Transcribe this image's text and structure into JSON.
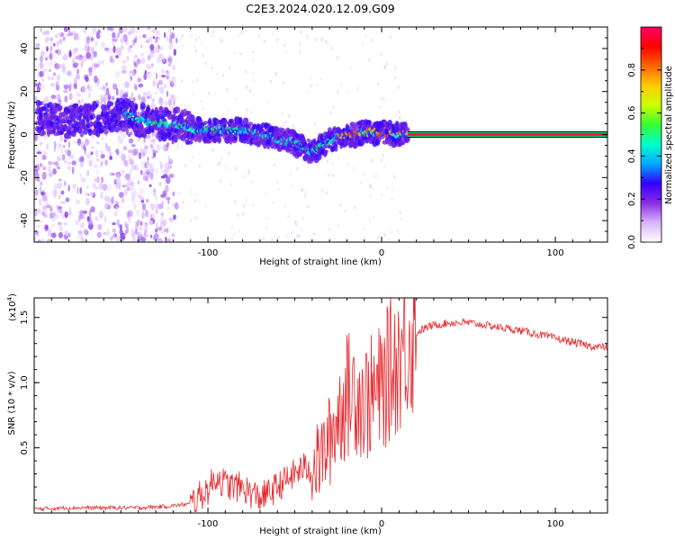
{
  "page_title": "C2E3.2024.020.12.09.G09",
  "chart_data": [
    {
      "type": "heatmap",
      "xlabel": "Height of straight line (km)",
      "ylabel": "Frequency (Hz)",
      "xlim": [
        -200,
        130
      ],
      "ylim": [
        -50,
        50
      ],
      "xticks": [
        -100,
        0,
        100
      ],
      "yticks": [
        -40,
        -20,
        0,
        20,
        40
      ],
      "colorbar": {
        "label": "Normalized spectral amplitude",
        "range": [
          0,
          1
        ],
        "ticks": [
          "0.0",
          "0.2",
          "0.4",
          "0.6",
          "0.8"
        ],
        "colormap": [
          "#ffffff",
          "#d9b3ff",
          "#8a2be2",
          "#3300ff",
          "#00aaff",
          "#00ffcc",
          "#33ff33",
          "#ccff00",
          "#ffcc00",
          "#ff6600",
          "#ff0000",
          "#ff0066"
        ]
      },
      "ridge": {
        "x": [
          -198,
          -190,
          -180,
          -170,
          -160,
          -150,
          -140,
          -130,
          -120,
          -110,
          -100,
          -90,
          -80,
          -70,
          -60,
          -50,
          -40,
          -35,
          -30,
          -25,
          -20,
          -15,
          -10,
          0,
          10,
          15,
          130
        ],
        "y": [
          8,
          7,
          6,
          8,
          7,
          10,
          7,
          5,
          5,
          3,
          2,
          2,
          2,
          0,
          -2,
          -4,
          -8,
          -5,
          -3,
          -1,
          0,
          0,
          1,
          1,
          0,
          0,
          0
        ]
      },
      "stable_line": {
        "x_start": 15,
        "x_end": 130,
        "frequency": 0
      }
    },
    {
      "type": "line",
      "xlabel": "Height of straight line (km)",
      "ylabel": "SNR (10 * v/v)",
      "scale_label": "(x10",
      "scale_exponent": "4",
      "scale_close": ")",
      "xlim": [
        -200,
        130
      ],
      "ylim": [
        0,
        1.65
      ],
      "xticks": [
        -100,
        0,
        100
      ],
      "yticks": [
        0.5,
        1.0,
        1.5
      ],
      "ytick_labels": [
        "0.5",
        "1.0",
        "1.5"
      ],
      "line_color": "#e8282d",
      "series": {
        "name": "SNR",
        "x": [
          -200,
          -180,
          -160,
          -140,
          -125,
          -110,
          -100,
          -95,
          -90,
          -85,
          -80,
          -75,
          -70,
          -65,
          -60,
          -55,
          -50,
          -45,
          -40,
          -35,
          -30,
          -25,
          -22,
          -20,
          -15,
          -10,
          -5,
          0,
          5,
          10,
          15,
          20,
          25,
          30,
          40,
          50,
          60,
          70,
          80,
          90,
          100,
          110,
          120,
          130
        ],
        "y": [
          0.03,
          0.04,
          0.04,
          0.04,
          0.05,
          0.07,
          0.18,
          0.28,
          0.22,
          0.2,
          0.2,
          0.15,
          0.12,
          0.15,
          0.2,
          0.25,
          0.3,
          0.35,
          0.33,
          0.42,
          0.55,
          0.75,
          0.85,
          0.9,
          0.95,
          0.85,
          0.9,
          0.95,
          1.1,
          1.2,
          1.35,
          1.38,
          1.42,
          1.44,
          1.46,
          1.46,
          1.44,
          1.42,
          1.4,
          1.37,
          1.34,
          1.31,
          1.28,
          1.27
        ]
      }
    }
  ]
}
